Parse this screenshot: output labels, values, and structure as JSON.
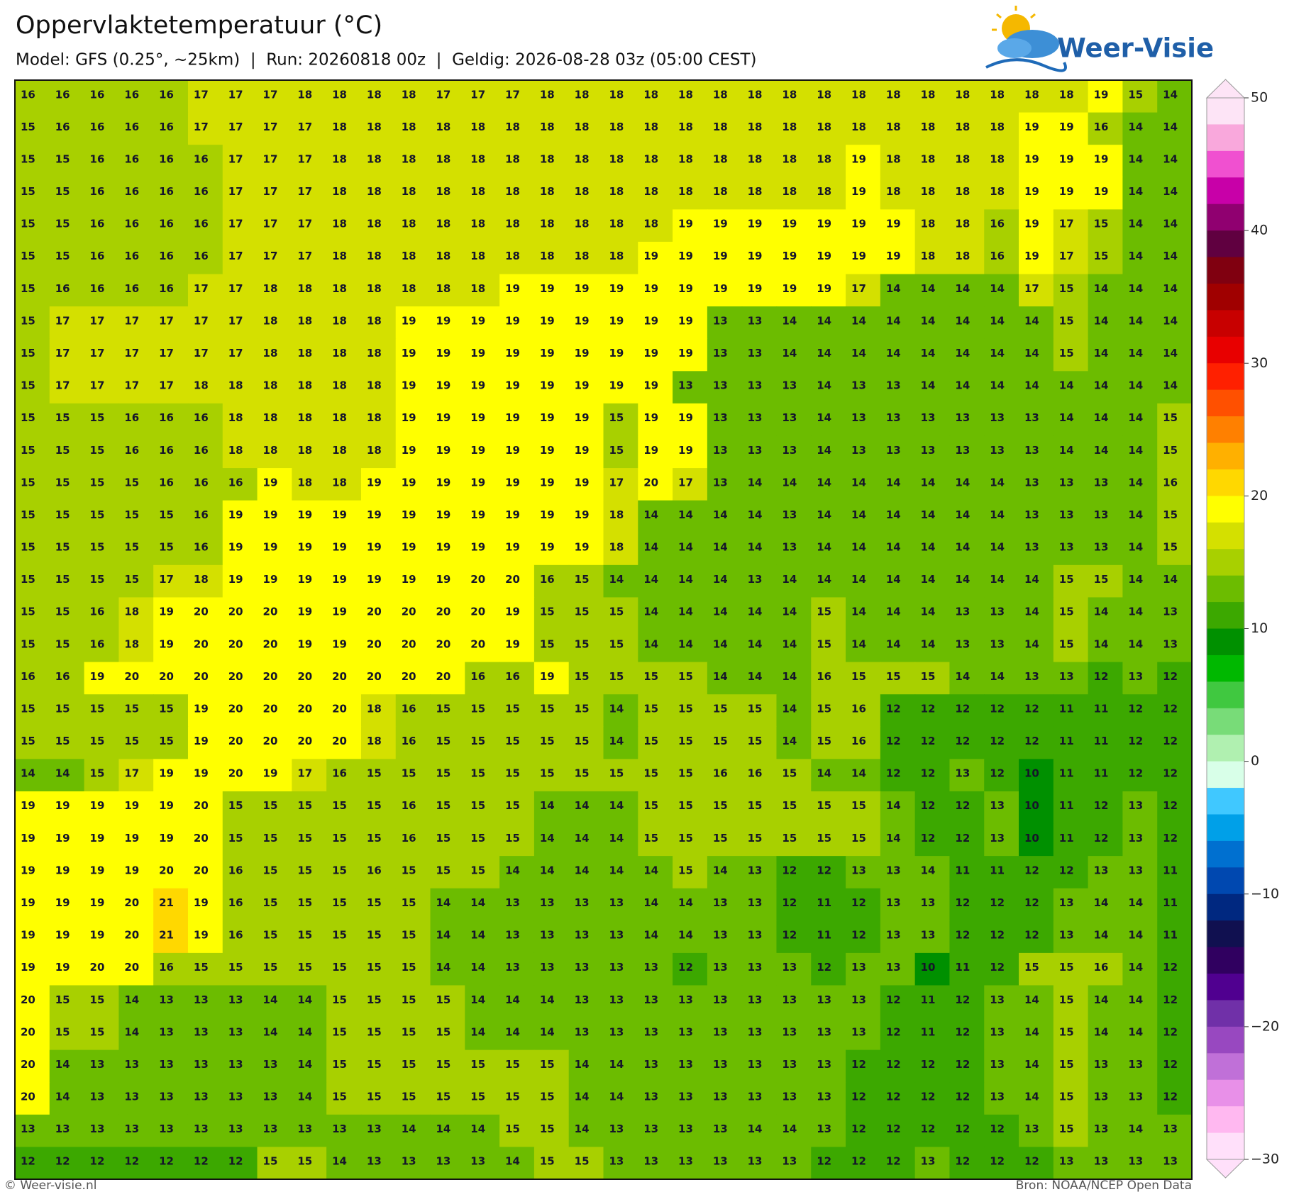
{
  "header": {
    "title": "Oppervlaktetemperatuur (°C)",
    "subtitle": "Model: GFS (0.25°, ~25km)  |  Run: 20260818 00z  |  Geldig: 2026-08-28 03z (05:00 CEST)",
    "logo": "Weer-Visie"
  },
  "map": {
    "rows": [
      [
        16,
        16,
        16,
        16,
        16,
        17,
        17,
        17,
        18,
        18,
        18,
        18,
        17,
        17,
        17,
        18,
        18,
        18,
        18,
        18,
        18,
        18,
        18,
        18,
        18,
        18,
        18,
        18,
        18,
        18,
        18,
        19,
        15,
        14
      ],
      [
        15,
        16,
        16,
        16,
        16,
        17,
        17,
        17,
        17,
        18,
        18,
        18,
        18,
        18,
        18,
        18,
        18,
        18,
        18,
        18,
        18,
        18,
        18,
        18,
        18,
        18,
        18,
        18,
        18,
        19,
        19,
        16,
        14,
        14
      ],
      [
        15,
        15,
        16,
        16,
        16,
        16,
        17,
        17,
        17,
        18,
        18,
        18,
        18,
        18,
        18,
        18,
        18,
        18,
        18,
        18,
        18,
        18,
        18,
        18,
        19,
        18,
        18,
        18,
        18,
        19,
        19,
        19,
        14,
        14
      ],
      [
        15,
        15,
        16,
        16,
        16,
        16,
        17,
        17,
        17,
        18,
        18,
        18,
        18,
        18,
        18,
        18,
        18,
        18,
        18,
        18,
        18,
        18,
        18,
        18,
        19,
        18,
        18,
        18,
        18,
        19,
        19,
        19,
        14,
        14
      ],
      [
        15,
        15,
        16,
        16,
        16,
        16,
        17,
        17,
        17,
        18,
        18,
        18,
        18,
        18,
        18,
        18,
        18,
        18,
        18,
        19,
        19,
        19,
        19,
        19,
        19,
        19,
        18,
        18,
        16,
        19,
        17,
        15,
        14,
        14
      ],
      [
        15,
        15,
        16,
        16,
        16,
        16,
        17,
        17,
        17,
        18,
        18,
        18,
        18,
        18,
        18,
        18,
        18,
        18,
        19,
        19,
        19,
        19,
        19,
        19,
        19,
        19,
        18,
        18,
        16,
        19,
        17,
        15,
        14,
        14
      ],
      [
        15,
        16,
        16,
        16,
        16,
        17,
        17,
        18,
        18,
        18,
        18,
        18,
        18,
        18,
        19,
        19,
        19,
        19,
        19,
        19,
        19,
        19,
        19,
        19,
        17,
        14,
        14,
        14,
        14,
        17,
        15,
        14,
        14,
        14
      ],
      [
        15,
        17,
        17,
        17,
        17,
        17,
        17,
        18,
        18,
        18,
        18,
        19,
        19,
        19,
        19,
        19,
        19,
        19,
        19,
        19,
        13,
        13,
        14,
        14,
        14,
        14,
        14,
        14,
        14,
        14,
        15,
        14,
        14,
        14
      ],
      [
        15,
        17,
        17,
        17,
        17,
        17,
        17,
        18,
        18,
        18,
        18,
        19,
        19,
        19,
        19,
        19,
        19,
        19,
        19,
        19,
        13,
        13,
        14,
        14,
        14,
        14,
        14,
        14,
        14,
        14,
        15,
        14,
        14,
        14
      ],
      [
        15,
        17,
        17,
        17,
        17,
        18,
        18,
        18,
        18,
        18,
        18,
        19,
        19,
        19,
        19,
        19,
        19,
        19,
        19,
        13,
        13,
        13,
        13,
        14,
        13,
        13,
        14,
        14,
        14,
        14,
        14,
        14,
        14,
        14
      ],
      [
        15,
        15,
        15,
        16,
        16,
        16,
        18,
        18,
        18,
        18,
        18,
        19,
        19,
        19,
        19,
        19,
        19,
        15,
        19,
        19,
        13,
        13,
        13,
        14,
        13,
        13,
        13,
        13,
        13,
        13,
        14,
        14,
        14,
        15
      ],
      [
        15,
        15,
        15,
        16,
        16,
        16,
        18,
        18,
        18,
        18,
        18,
        19,
        19,
        19,
        19,
        19,
        19,
        15,
        19,
        19,
        13,
        13,
        13,
        14,
        13,
        13,
        13,
        13,
        13,
        13,
        14,
        14,
        14,
        15
      ],
      [
        15,
        15,
        15,
        15,
        16,
        16,
        16,
        19,
        18,
        18,
        19,
        19,
        19,
        19,
        19,
        19,
        19,
        17,
        20,
        17,
        13,
        14,
        14,
        14,
        14,
        14,
        14,
        14,
        14,
        13,
        13,
        13,
        14,
        16
      ],
      [
        15,
        15,
        15,
        15,
        15,
        16,
        19,
        19,
        19,
        19,
        19,
        19,
        19,
        19,
        19,
        19,
        19,
        18,
        14,
        14,
        14,
        14,
        13,
        14,
        14,
        14,
        14,
        14,
        14,
        13,
        13,
        13,
        14,
        15
      ],
      [
        15,
        15,
        15,
        15,
        15,
        16,
        19,
        19,
        19,
        19,
        19,
        19,
        19,
        19,
        19,
        19,
        19,
        18,
        14,
        14,
        14,
        14,
        13,
        14,
        14,
        14,
        14,
        14,
        14,
        13,
        13,
        13,
        14,
        15
      ],
      [
        15,
        15,
        15,
        15,
        17,
        18,
        19,
        19,
        19,
        19,
        19,
        19,
        19,
        20,
        20,
        16,
        15,
        14,
        14,
        14,
        14,
        13,
        14,
        14,
        14,
        14,
        14,
        14,
        14,
        14,
        15,
        15,
        14,
        14
      ],
      [
        15,
        15,
        16,
        18,
        19,
        20,
        20,
        20,
        19,
        19,
        20,
        20,
        20,
        20,
        19,
        15,
        15,
        15,
        14,
        14,
        14,
        14,
        14,
        15,
        14,
        14,
        14,
        13,
        13,
        14,
        15,
        14,
        14,
        13
      ],
      [
        15,
        15,
        16,
        18,
        19,
        20,
        20,
        20,
        19,
        19,
        20,
        20,
        20,
        20,
        19,
        15,
        15,
        15,
        14,
        14,
        14,
        14,
        14,
        15,
        14,
        14,
        14,
        13,
        13,
        14,
        15,
        14,
        14,
        13
      ],
      [
        16,
        16,
        19,
        20,
        20,
        20,
        20,
        20,
        20,
        20,
        20,
        20,
        20,
        16,
        16,
        19,
        15,
        15,
        15,
        15,
        14,
        14,
        14,
        16,
        15,
        15,
        15,
        14,
        14,
        13,
        13,
        12,
        13,
        12
      ],
      [
        15,
        15,
        15,
        15,
        15,
        19,
        20,
        20,
        20,
        20,
        18,
        16,
        15,
        15,
        15,
        15,
        15,
        14,
        15,
        15,
        15,
        15,
        14,
        15,
        16,
        12,
        12,
        12,
        12,
        12,
        11,
        11,
        12,
        12
      ],
      [
        15,
        15,
        15,
        15,
        15,
        19,
        20,
        20,
        20,
        20,
        18,
        16,
        15,
        15,
        15,
        15,
        15,
        14,
        15,
        15,
        15,
        15,
        14,
        15,
        16,
        12,
        12,
        12,
        12,
        12,
        11,
        11,
        12,
        12
      ],
      [
        14,
        14,
        15,
        17,
        19,
        19,
        20,
        19,
        17,
        16,
        15,
        15,
        15,
        15,
        15,
        15,
        15,
        15,
        15,
        15,
        16,
        16,
        15,
        14,
        14,
        12,
        12,
        13,
        12,
        10,
        11,
        11,
        12,
        12
      ],
      [
        19,
        19,
        19,
        19,
        19,
        20,
        15,
        15,
        15,
        15,
        15,
        16,
        15,
        15,
        15,
        14,
        14,
        14,
        15,
        15,
        15,
        15,
        15,
        15,
        15,
        14,
        12,
        12,
        13,
        10,
        11,
        12,
        13,
        12
      ],
      [
        19,
        19,
        19,
        19,
        19,
        20,
        15,
        15,
        15,
        15,
        15,
        16,
        15,
        15,
        15,
        14,
        14,
        14,
        15,
        15,
        15,
        15,
        15,
        15,
        15,
        14,
        12,
        12,
        13,
        10,
        11,
        12,
        13,
        12
      ],
      [
        19,
        19,
        19,
        19,
        20,
        20,
        16,
        15,
        15,
        15,
        16,
        15,
        15,
        15,
        14,
        14,
        14,
        14,
        14,
        15,
        14,
        13,
        12,
        12,
        13,
        13,
        14,
        11,
        11,
        12,
        12,
        13,
        13,
        11
      ],
      [
        19,
        19,
        19,
        20,
        21,
        19,
        16,
        15,
        15,
        15,
        15,
        15,
        14,
        14,
        13,
        13,
        13,
        13,
        14,
        14,
        13,
        13,
        12,
        11,
        12,
        13,
        13,
        12,
        12,
        12,
        13,
        14,
        14,
        11
      ],
      [
        19,
        19,
        19,
        20,
        21,
        19,
        16,
        15,
        15,
        15,
        15,
        15,
        14,
        14,
        13,
        13,
        13,
        13,
        14,
        14,
        13,
        13,
        12,
        11,
        12,
        13,
        13,
        12,
        12,
        12,
        13,
        14,
        14,
        11
      ],
      [
        19,
        19,
        20,
        20,
        16,
        15,
        15,
        15,
        15,
        15,
        15,
        15,
        14,
        14,
        13,
        13,
        13,
        13,
        13,
        12,
        13,
        13,
        13,
        12,
        13,
        13,
        10,
        11,
        12,
        15,
        15,
        16,
        14,
        12
      ],
      [
        20,
        15,
        15,
        14,
        13,
        13,
        13,
        14,
        14,
        15,
        15,
        15,
        15,
        14,
        14,
        14,
        13,
        13,
        13,
        13,
        13,
        13,
        13,
        13,
        13,
        12,
        11,
        12,
        13,
        14,
        15,
        14,
        14,
        12
      ],
      [
        20,
        15,
        15,
        14,
        13,
        13,
        13,
        14,
        14,
        15,
        15,
        15,
        15,
        14,
        14,
        14,
        13,
        13,
        13,
        13,
        13,
        13,
        13,
        13,
        13,
        12,
        11,
        12,
        13,
        14,
        15,
        14,
        14,
        12
      ],
      [
        20,
        14,
        13,
        13,
        13,
        13,
        13,
        13,
        14,
        15,
        15,
        15,
        15,
        15,
        15,
        15,
        14,
        14,
        13,
        13,
        13,
        13,
        13,
        13,
        12,
        12,
        12,
        12,
        13,
        14,
        15,
        13,
        13,
        12
      ],
      [
        20,
        14,
        13,
        13,
        13,
        13,
        13,
        13,
        14,
        15,
        15,
        15,
        15,
        15,
        15,
        15,
        14,
        14,
        13,
        13,
        13,
        13,
        13,
        13,
        12,
        12,
        12,
        12,
        13,
        14,
        15,
        13,
        13,
        12
      ],
      [
        13,
        13,
        13,
        13,
        13,
        13,
        13,
        13,
        13,
        13,
        13,
        14,
        14,
        14,
        15,
        15,
        14,
        13,
        13,
        13,
        13,
        14,
        14,
        13,
        12,
        12,
        12,
        12,
        12,
        13,
        15,
        13,
        14,
        13
      ],
      [
        12,
        12,
        12,
        12,
        12,
        12,
        12,
        15,
        15,
        14,
        13,
        13,
        13,
        13,
        14,
        15,
        15,
        13,
        13,
        13,
        13,
        13,
        13,
        12,
        12,
        12,
        13,
        12,
        12,
        12,
        13,
        13,
        13,
        13
      ]
    ]
  },
  "colorbar": {
    "lim": [
      -30,
      50
    ],
    "ticks": [
      50,
      40,
      30,
      20,
      10,
      0,
      {
        "value": -10,
        "label": "−10"
      },
      {
        "value": -20,
        "label": "−20"
      },
      {
        "value": -30,
        "label": "−30"
      }
    ],
    "colors": [
      "#fde4f6",
      "#f9a8dc",
      "#f050d0",
      "#c800a8",
      "#900070",
      "#600040",
      "#800010",
      "#a00000",
      "#c80000",
      "#e80000",
      "#ff2000",
      "#ff5000",
      "#ff8000",
      "#ffb000",
      "#ffd800",
      "#ffff00",
      "#d4e000",
      "#a8d000",
      "#6cbc00",
      "#3ca800",
      "#009000",
      "#00b800",
      "#40c840",
      "#78dc78",
      "#b0f0b0",
      "#d8ffe8",
      "#40c8ff",
      "#00a0e8",
      "#0070d0",
      "#0048b0",
      "#002880",
      "#101050",
      "#300060",
      "#500090",
      "#7030a8",
      "#9848c0",
      "#c070d8",
      "#e890e8",
      "#ffb8f0",
      "#ffe0fa"
    ]
  },
  "footer": {
    "left": "© Weer-visie.nl",
    "right": "Bron: NOAA/NCEP Open Data"
  }
}
